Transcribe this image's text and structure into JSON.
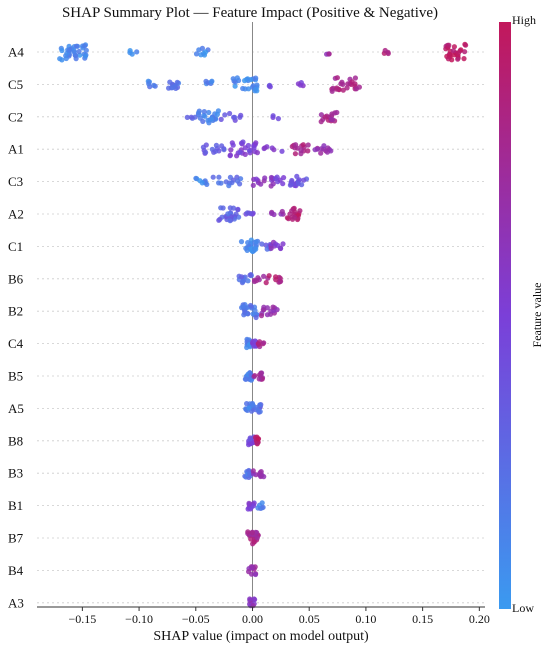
{
  "chart_data": {
    "type": "scatter",
    "title": "SHAP Summary Plot — Feature Impact (Positive & Negative)",
    "xlabel": "SHAP value (impact on model output)",
    "xlim": [
      -0.19,
      0.205
    ],
    "x_ticks": [
      "−0.15",
      "−0.10",
      "−0.05",
      "0.00",
      "0.05",
      "0.10",
      "0.15",
      "0.20"
    ],
    "x_tick_values": [
      -0.15,
      -0.1,
      -0.05,
      0.0,
      0.05,
      0.1,
      0.15,
      0.2
    ],
    "zero_line": 0.0,
    "grid": "horizontal dashed",
    "colorbar": {
      "label": "Feature value",
      "high_label": "High",
      "low_label": "Low",
      "low_color": "#3a9af0",
      "mid_color": "#7b3fd8",
      "high_color": "#c2185b"
    },
    "features": [
      {
        "name": "A4",
        "clusters": [
          [
            -0.17,
            -0.145,
            0.1,
            34
          ],
          [
            -0.108,
            -0.1,
            0.1,
            4
          ],
          [
            -0.05,
            -0.038,
            0.1,
            8
          ],
          [
            0.065,
            0.068,
            0.7,
            3
          ],
          [
            0.115,
            0.12,
            0.85,
            4
          ],
          [
            0.17,
            0.188,
            0.95,
            30
          ]
        ]
      },
      {
        "name": "C5",
        "clusters": [
          [
            -0.095,
            -0.085,
            0.15,
            6
          ],
          [
            -0.075,
            -0.065,
            0.2,
            12
          ],
          [
            -0.045,
            -0.035,
            0.15,
            6
          ],
          [
            -0.018,
            0.005,
            0.1,
            25
          ],
          [
            0.012,
            0.018,
            0.4,
            3
          ],
          [
            0.035,
            0.045,
            0.55,
            4
          ],
          [
            0.07,
            0.095,
            0.82,
            25
          ]
        ]
      },
      {
        "name": "C2",
        "clusters": [
          [
            -0.06,
            -0.05,
            0.3,
            4
          ],
          [
            -0.05,
            -0.03,
            0.15,
            22
          ],
          [
            -0.028,
            -0.01,
            0.35,
            8
          ],
          [
            0.015,
            0.025,
            0.5,
            3
          ],
          [
            0.06,
            0.075,
            0.8,
            15
          ]
        ]
      },
      {
        "name": "A1",
        "clusters": [
          [
            -0.045,
            -0.025,
            0.35,
            14
          ],
          [
            -0.02,
            0.005,
            0.5,
            26
          ],
          [
            0.01,
            0.03,
            0.55,
            6
          ],
          [
            0.035,
            0.05,
            0.82,
            14
          ],
          [
            0.055,
            0.07,
            0.7,
            12
          ]
        ]
      },
      {
        "name": "C3",
        "clusters": [
          [
            -0.05,
            -0.04,
            0.1,
            8
          ],
          [
            -0.035,
            -0.01,
            0.25,
            14
          ],
          [
            0.0,
            0.02,
            0.6,
            14
          ],
          [
            0.02,
            0.04,
            0.45,
            18
          ],
          [
            0.04,
            0.048,
            0.35,
            6
          ]
        ]
      },
      {
        "name": "A2",
        "clusters": [
          [
            -0.03,
            -0.01,
            0.3,
            24
          ],
          [
            -0.008,
            0.002,
            0.4,
            6
          ],
          [
            0.015,
            0.03,
            0.65,
            6
          ],
          [
            0.03,
            0.042,
            0.9,
            18
          ]
        ]
      },
      {
        "name": "C1",
        "clusters": [
          [
            -0.01,
            0.005,
            0.1,
            22
          ],
          [
            0.006,
            0.016,
            0.3,
            6
          ],
          [
            0.016,
            0.027,
            0.55,
            10
          ]
        ]
      },
      {
        "name": "B6",
        "clusters": [
          [
            -0.012,
            0.0,
            0.25,
            12
          ],
          [
            0.001,
            0.01,
            0.7,
            6
          ],
          [
            0.012,
            0.025,
            0.85,
            10
          ]
        ]
      },
      {
        "name": "B2",
        "clusters": [
          [
            -0.01,
            0.005,
            0.2,
            24
          ],
          [
            0.005,
            0.022,
            0.7,
            14
          ]
        ]
      },
      {
        "name": "C4",
        "clusters": [
          [
            -0.006,
            -0.002,
            0.1,
            12
          ],
          [
            0.0,
            0.004,
            0.5,
            10
          ],
          [
            0.004,
            0.01,
            0.8,
            6
          ]
        ]
      },
      {
        "name": "B5",
        "clusters": [
          [
            -0.007,
            0.0,
            0.15,
            14
          ],
          [
            0.0,
            0.009,
            0.75,
            10
          ]
        ]
      },
      {
        "name": "A5",
        "clusters": [
          [
            -0.006,
            0.001,
            0.15,
            16
          ],
          [
            0.0,
            0.008,
            0.25,
            10
          ]
        ]
      },
      {
        "name": "B8",
        "clusters": [
          [
            -0.004,
            0.002,
            0.45,
            12
          ],
          [
            0.002,
            0.006,
            0.95,
            10
          ]
        ]
      },
      {
        "name": "B3",
        "clusters": [
          [
            -0.007,
            0.0,
            0.2,
            12
          ],
          [
            0.0,
            0.01,
            0.65,
            10
          ]
        ]
      },
      {
        "name": "B1",
        "clusters": [
          [
            -0.004,
            0.002,
            0.55,
            10
          ],
          [
            0.004,
            0.01,
            0.15,
            6
          ]
        ]
      },
      {
        "name": "B7",
        "clusters": [
          [
            -0.006,
            0.006,
            0.8,
            22
          ]
        ]
      },
      {
        "name": "B4",
        "clusters": [
          [
            -0.004,
            0.003,
            0.7,
            12
          ]
        ]
      },
      {
        "name": "A3",
        "clusters": [
          [
            -0.003,
            0.003,
            0.6,
            10
          ]
        ]
      }
    ]
  }
}
